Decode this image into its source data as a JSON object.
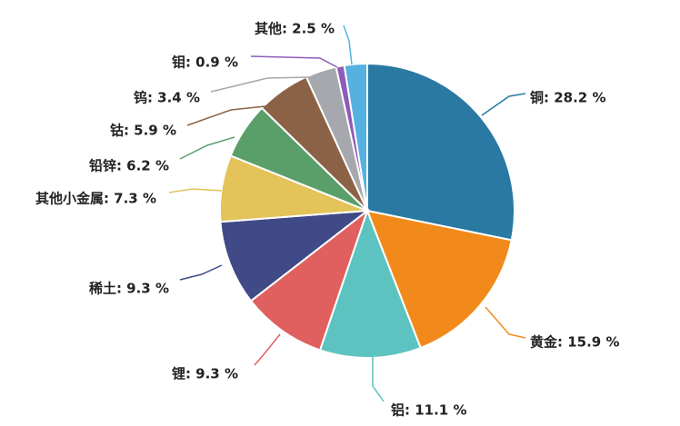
{
  "chart_data": {
    "type": "pie",
    "title": "",
    "start_angle_deg": 0,
    "direction": "clockwise",
    "legend": "none",
    "slices": [
      {
        "label": "铜: 28.2 %",
        "name": "铜",
        "value": 28.2,
        "color": "#2979a3"
      },
      {
        "label": "黄金: 15.9 %",
        "name": "黄金",
        "value": 15.9,
        "color": "#f28a1b"
      },
      {
        "label": "铝: 11.1 %",
        "name": "铝",
        "value": 11.1,
        "color": "#5cc3c0"
      },
      {
        "label": "锂: 9.3 %",
        "name": "锂",
        "value": 9.3,
        "color": "#e05f5f"
      },
      {
        "label": "稀土: 9.3 %",
        "name": "稀土",
        "value": 9.3,
        "color": "#3f4a86"
      },
      {
        "label": "其他小金属: 7.3 %",
        "name": "其他小金属",
        "value": 7.3,
        "color": "#e3c35a"
      },
      {
        "label": "铅锌: 6.2 %",
        "name": "铅锌",
        "value": 6.2,
        "color": "#5a9e6a"
      },
      {
        "label": "钴: 5.9 %",
        "name": "钴",
        "value": 5.9,
        "color": "#8c6246"
      },
      {
        "label": "钨: 3.4 %",
        "name": "钨",
        "value": 3.4,
        "color": "#a6a8ad"
      },
      {
        "label": "钼: 0.9 %",
        "name": "钼",
        "value": 0.9,
        "color": "#8e5bb8"
      },
      {
        "label": "其他: 2.5 %",
        "name": "其他",
        "value": 2.5,
        "color": "#55b2e0"
      }
    ]
  }
}
